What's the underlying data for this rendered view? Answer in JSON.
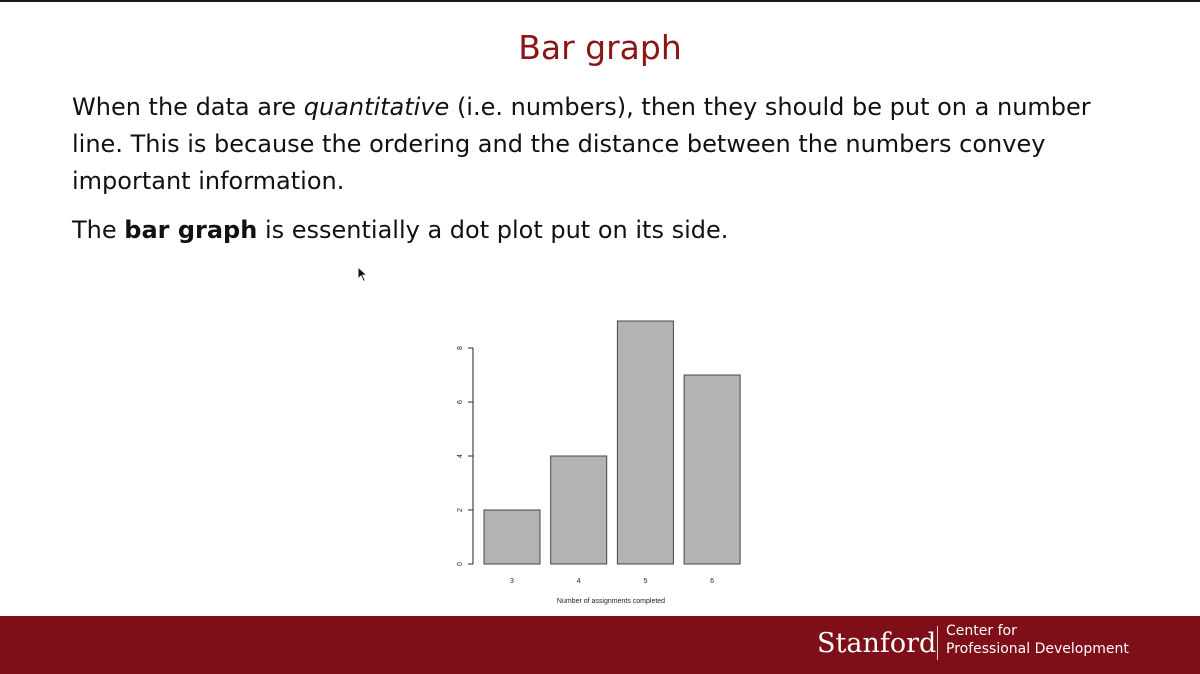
{
  "slide": {
    "title": "Bar graph",
    "paragraph1": {
      "before": "When the data are ",
      "emphasis": "quantitative",
      "after": " (i.e. numbers), then they should be put on a number line. This is because the ordering and the distance between the numbers convey important information."
    },
    "paragraph2": {
      "before": "The ",
      "strong": "bar graph",
      "after": " is essentially a dot plot put on its side."
    }
  },
  "chart_data": {
    "type": "bar",
    "categories": [
      "3",
      "4",
      "5",
      "6"
    ],
    "values": [
      2,
      4,
      9,
      7
    ],
    "xlabel": "Number of assignments completed",
    "ylabel": "",
    "yticks": [
      0,
      2,
      4,
      6,
      8
    ],
    "ylim": [
      0,
      9
    ],
    "grid": false,
    "colors": {
      "bar_fill": "#b3b3b3",
      "bar_stroke": "#444444"
    }
  },
  "footer": {
    "wordmark": "Stanford",
    "line1": "Center for",
    "line2": "Professional Development",
    "background": "#7e0f18"
  },
  "icons": {
    "cursor": "mouse-pointer-icon"
  }
}
